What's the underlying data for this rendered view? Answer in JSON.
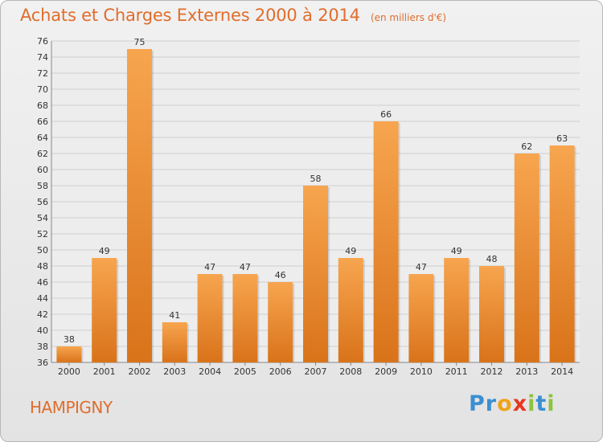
{
  "header": {
    "title": "Achats et Charges Externes 2000 à 2014",
    "unit": "(en milliers d'€)"
  },
  "footer": {
    "town": "HAMPIGNY",
    "brand": {
      "letters": [
        {
          "ch": "P",
          "color": "#3b8fd1"
        },
        {
          "ch": "r",
          "color": "#3b8fd1"
        },
        {
          "ch": "o",
          "color": "#f0a31a"
        },
        {
          "ch": "x",
          "color": "#e8371f"
        },
        {
          "ch": "i",
          "color": "#8fc23c"
        },
        {
          "ch": "t",
          "color": "#3b8fd1"
        },
        {
          "ch": "i",
          "color": "#8fc23c"
        }
      ]
    }
  },
  "colors": {
    "bar_light": "#f7a54f",
    "bar_dark": "#d9731a",
    "accent": "#e06d2c",
    "grid": "#cfcfcf"
  },
  "chart_data": {
    "type": "bar",
    "categories": [
      "2000",
      "2001",
      "2002",
      "2003",
      "2004",
      "2005",
      "2006",
      "2007",
      "2008",
      "2009",
      "2010",
      "2011",
      "2012",
      "2013",
      "2014"
    ],
    "values": [
      38,
      49,
      75,
      41,
      47,
      47,
      46,
      58,
      49,
      66,
      47,
      49,
      48,
      62,
      63
    ],
    "data_labels": [
      "38",
      "49",
      "75",
      "41",
      "47",
      "47",
      "46",
      "58",
      "49",
      "66",
      "47",
      "49",
      "48",
      "62",
      "63"
    ],
    "ylim": [
      36,
      76
    ],
    "yticks": [
      "36",
      "38",
      "40",
      "42",
      "44",
      "46",
      "48",
      "50",
      "52",
      "54",
      "56",
      "58",
      "60",
      "62",
      "64",
      "66",
      "68",
      "70",
      "72",
      "74",
      "76"
    ],
    "grid": true,
    "legend": "none"
  }
}
